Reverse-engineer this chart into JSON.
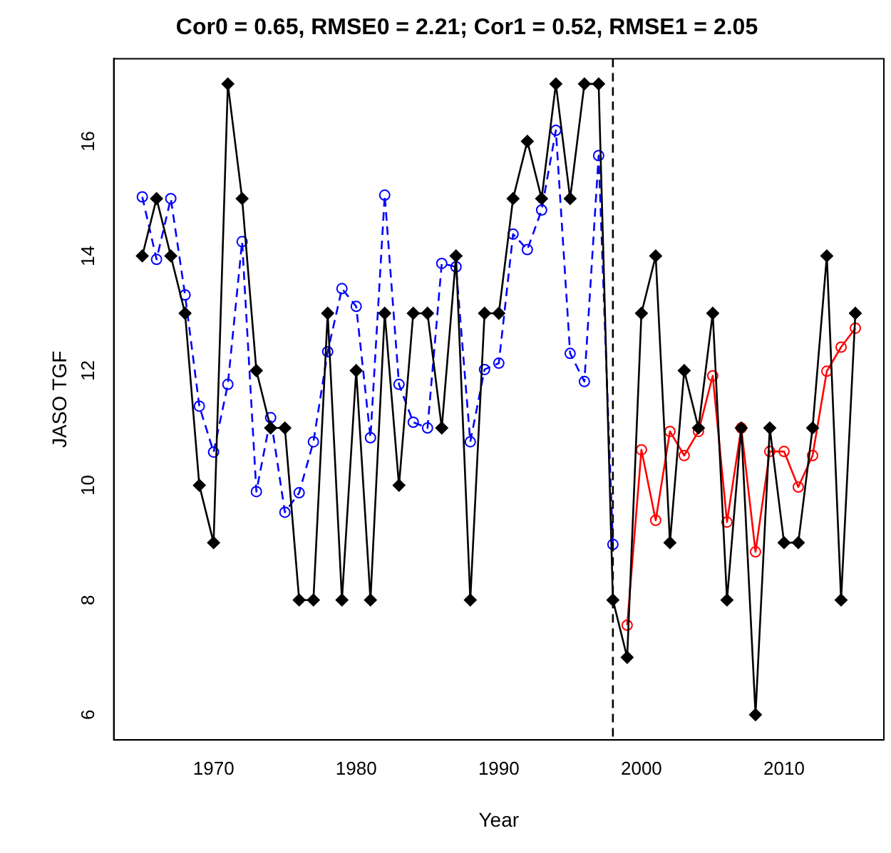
{
  "chart_data": {
    "type": "line",
    "title": "Cor0 = 0.65, RMSE0 = 2.21; Cor1 = 0.52, RMSE1 = 2.05",
    "xlabel": "Year",
    "ylabel": "JASO TGF",
    "xlim": [
      1963,
      2017
    ],
    "xticks": [
      1970,
      1980,
      1990,
      2000,
      2010
    ],
    "ylim": [
      5.56,
      17.44
    ],
    "yticks": [
      6,
      8,
      10,
      12,
      14,
      16
    ],
    "legend": false,
    "grid": false,
    "ref_lines": [
      {
        "axis": "x",
        "value": 1998,
        "line_style": "dashed",
        "color": "#000000"
      }
    ],
    "series": [
      {
        "color": "#000000",
        "marker": "diamond",
        "line_style": "solid",
        "x": [
          1965,
          1966,
          1967,
          1968,
          1969,
          1970,
          1971,
          1972,
          1973,
          1974,
          1975,
          1976,
          1977,
          1978,
          1979,
          1980,
          1981,
          1982,
          1983,
          1984,
          1985,
          1986,
          1987,
          1988,
          1989,
          1990,
          1991,
          1992,
          1993,
          1994,
          1995,
          1996,
          1997,
          1998,
          1999,
          2000,
          2001,
          2002,
          2003,
          2004,
          2005,
          2006,
          2007,
          2008,
          2009,
          2010,
          2011,
          2012,
          2013,
          2014,
          2015
        ],
        "values": [
          14,
          15,
          14,
          13,
          10,
          9,
          17,
          15,
          12,
          11,
          11,
          8,
          8,
          13,
          8,
          12,
          8,
          13,
          10,
          13,
          13,
          11,
          14,
          8,
          13,
          13,
          15,
          16,
          15,
          17,
          15,
          17,
          17,
          8,
          7,
          13,
          14,
          9,
          12,
          11,
          13,
          8,
          11,
          6,
          11,
          9,
          9,
          11,
          14,
          8,
          13
        ]
      },
      {
        "color": "#0000ff",
        "marker": "circle",
        "line_style": "dashed",
        "x": [
          1965,
          1966,
          1967,
          1968,
          1969,
          1970,
          1971,
          1972,
          1973,
          1974,
          1975,
          1976,
          1977,
          1978,
          1979,
          1980,
          1981,
          1982,
          1983,
          1984,
          1985,
          1986,
          1987,
          1988,
          1989,
          1990,
          1991,
          1992,
          1993,
          1994,
          1995,
          1996,
          1997,
          1998
        ],
        "values": [
          15.03,
          13.94,
          15.0,
          13.32,
          11.38,
          10.58,
          11.76,
          14.25,
          9.89,
          11.18,
          9.53,
          9.87,
          10.76,
          12.33,
          13.43,
          13.12,
          10.83,
          15.06,
          11.76,
          11.1,
          11.0,
          13.87,
          13.81,
          10.76,
          12.02,
          12.13,
          14.38,
          14.11,
          14.8,
          16.19,
          12.3,
          11.81,
          15.75,
          8.97
        ]
      },
      {
        "color": "#ff0000",
        "marker": "circle",
        "line_style": "solid",
        "x": [
          1999,
          2000,
          2001,
          2002,
          2003,
          2004,
          2005,
          2006,
          2007,
          2008,
          2009,
          2010,
          2011,
          2012,
          2013,
          2014,
          2015
        ],
        "values": [
          7.56,
          10.62,
          9.39,
          10.94,
          10.52,
          10.94,
          11.91,
          9.36,
          11.0,
          8.84,
          10.59,
          10.59,
          9.97,
          10.52,
          11.99,
          12.41,
          12.74
        ]
      }
    ]
  }
}
